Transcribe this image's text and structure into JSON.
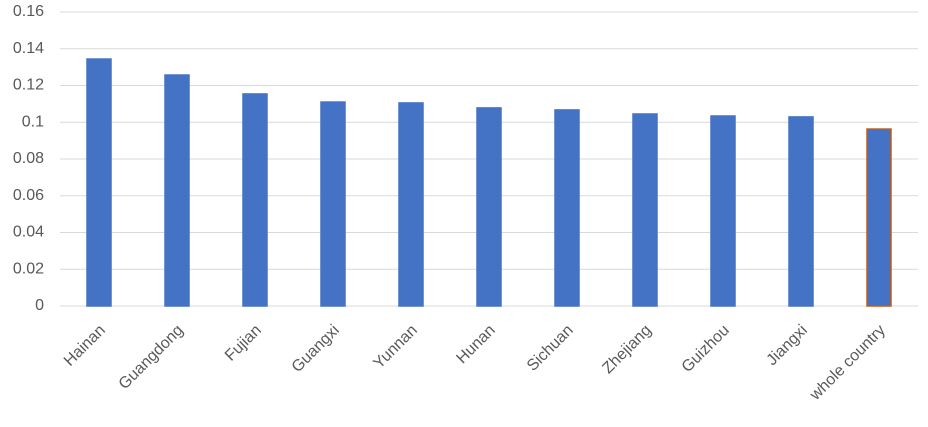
{
  "chart_data": {
    "type": "bar",
    "categories": [
      "Hainan",
      "Guangdong",
      "Fujian",
      "Guangxi",
      "Yunnan",
      "Hunan",
      "Sichuan",
      "Zhejiang",
      "Guizhou",
      "Jiangxi",
      "whole country"
    ],
    "values": [
      0.1344,
      0.1257,
      0.1154,
      0.111,
      0.1105,
      0.1078,
      0.1067,
      0.1045,
      0.1034,
      0.1029,
      0.0963
    ],
    "colors": [
      "#4472c4",
      "#4472c4",
      "#4472c4",
      "#4472c4",
      "#4472c4",
      "#4472c4",
      "#4472c4",
      "#4472c4",
      "#4472c4",
      "#4472c4",
      "#4472c4"
    ],
    "edgecolors": [
      "#4472c4",
      "#4472c4",
      "#4472c4",
      "#4472c4",
      "#4472c4",
      "#4472c4",
      "#4472c4",
      "#4472c4",
      "#4472c4",
      "#4472c4",
      "#c55a11"
    ],
    "ylim": [
      0,
      0.16
    ],
    "yticks": [
      0,
      0.02,
      0.04,
      0.06,
      0.08,
      0.1,
      0.12,
      0.14,
      0.16
    ],
    "grid": true
  }
}
